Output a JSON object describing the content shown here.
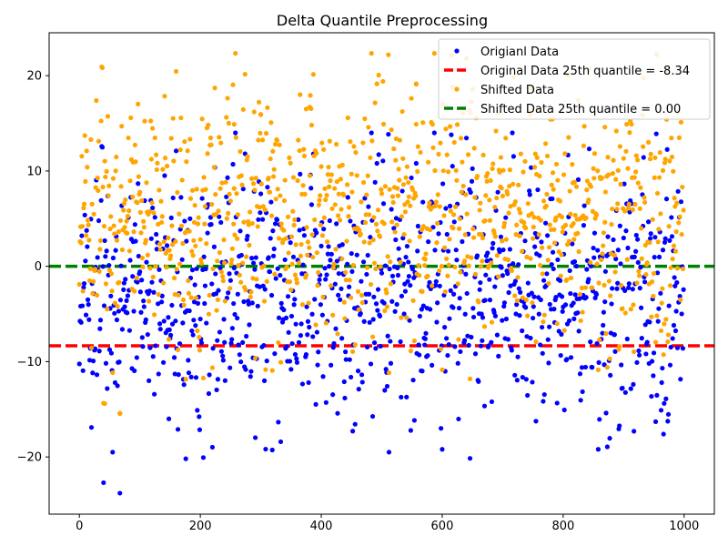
{
  "chart_data": {
    "type": "scatter",
    "title": "Delta Quantile Preprocessing",
    "xlabel": "",
    "ylabel": "",
    "xlim": [
      -50,
      1050
    ],
    "ylim": [
      -26,
      24.5
    ],
    "x_ticks": [
      0,
      200,
      400,
      600,
      800,
      1000
    ],
    "y_ticks": [
      -20,
      -10,
      0,
      10,
      20
    ],
    "grid": false,
    "legend_position": "top-right",
    "x": {
      "start": 0,
      "end": 999,
      "step": 1,
      "count": 1000
    },
    "series": [
      {
        "name": "Origianl Data",
        "kind": "points",
        "color": "#0000ff",
        "shift": 0,
        "distribution": {
          "mean": -3.2,
          "std": 6.5,
          "min": -23.8,
          "max": 14.0
        },
        "highlighted_points": [
          {
            "x": 67,
            "y": -23.8
          },
          {
            "x": 40,
            "y": -22.7
          },
          {
            "x": 55,
            "y": -19.5
          },
          {
            "x": 600,
            "y": -19.2
          },
          {
            "x": 858,
            "y": -19.2
          },
          {
            "x": 598,
            "y": -17.0
          },
          {
            "x": 20,
            "y": -16.9
          },
          {
            "x": 917,
            "y": -17.3
          },
          {
            "x": 962,
            "y": -15.1
          },
          {
            "x": 953,
            "y": -16.3
          },
          {
            "x": 148,
            "y": -16.0
          },
          {
            "x": 557,
            "y": 10.8
          },
          {
            "x": 617,
            "y": 10.5
          },
          {
            "x": 954,
            "y": 13.9
          },
          {
            "x": 383,
            "y": 8.2
          },
          {
            "x": 300,
            "y": 7.6
          }
        ]
      },
      {
        "name": "Shifted Data",
        "kind": "points",
        "color": "#ffa500",
        "shift": 8.34,
        "highlighted_points": [
          {
            "x": 955,
            "y": 22.2
          },
          {
            "x": 557,
            "y": 19.1
          },
          {
            "x": 375,
            "y": 16.5
          },
          {
            "x": 381,
            "y": 16.7
          },
          {
            "x": 300,
            "y": 15.9
          },
          {
            "x": 256,
            "y": 14.9
          },
          {
            "x": 557,
            "y": 14.9
          },
          {
            "x": 869,
            "y": 14.6
          },
          {
            "x": 42,
            "y": -14.4
          },
          {
            "x": 67,
            "y": -15.4
          }
        ]
      },
      {
        "name": "Original Data 25th quantile = -8.34",
        "kind": "hline",
        "color": "#ff0000",
        "y": -8.34
      },
      {
        "name": "Shifted Data 25th quantile = 0.00",
        "kind": "hline",
        "color": "#008000",
        "y": 0.0
      }
    ]
  }
}
